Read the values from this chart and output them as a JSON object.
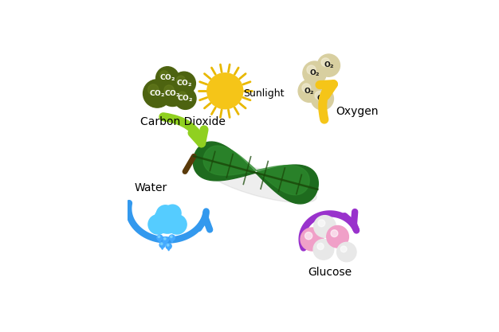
{
  "bg_color": "#ffffff",
  "leaf_color_dark": "#1e6b1e",
  "leaf_color_mid": "#2e8b2e",
  "leaf_color_light": "#3aaa3a",
  "leaf_vein_color": "#1a4a0a",
  "leaf_stem_color": "#5a3a0a",
  "sun_color": "#f5c518",
  "sun_ray_color": "#e8b800",
  "co2_bubble_color": "#4d6310",
  "co2_bubble_highlight": "#6a8020",
  "co2_text_color": "#ffffff",
  "o2_bubble_color": "#d8cfa0",
  "o2_bubble_highlight": "#f5f0dc",
  "o2_text_color": "#111111",
  "arrow_green_color": "#90d020",
  "arrow_yellow_color": "#f5c518",
  "arrow_blue_color": "#3399ee",
  "arrow_purple_color": "#9932CC",
  "cloud_color_light": "#55ccff",
  "cloud_color_mid": "#33aaee",
  "rain_color": "#44aaff",
  "glucose_pink_color": "#f0a0c8",
  "glucose_white_color": "#e8e8e8",
  "glucose_highlight": "#ffffff",
  "labels": {
    "carbon_dioxide": "Carbon Dioxide",
    "sunlight": "Sunlight",
    "oxygen": "Oxygen",
    "water": "Water",
    "glucose": "Glucose"
  },
  "label_fontsize": 10,
  "label_fontweight": "normal"
}
